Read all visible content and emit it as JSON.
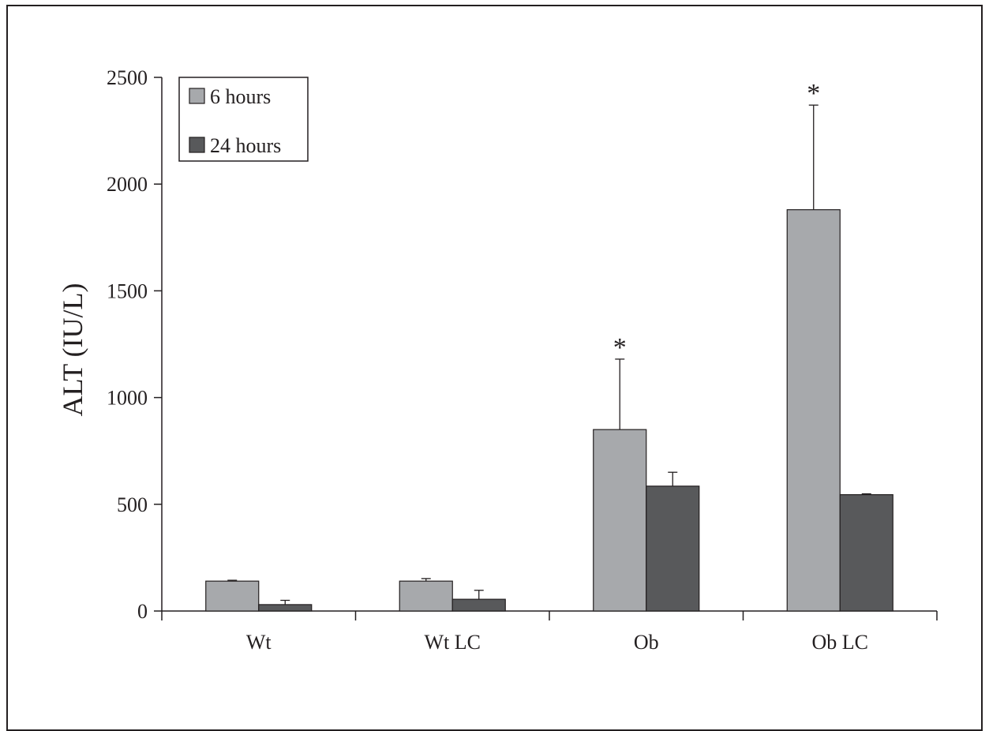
{
  "chart_data": {
    "type": "bar",
    "title": "",
    "xlabel": "",
    "ylabel": "ALT (IU/L)",
    "ylim": [
      0,
      2500
    ],
    "yticks": [
      0,
      500,
      1000,
      1500,
      2000,
      2500
    ],
    "grid": false,
    "legend_position": "top-left",
    "categories": [
      "Wt",
      "Wt LC",
      "Ob",
      "Ob LC"
    ],
    "series": [
      {
        "name": "6 hours",
        "color": "#a7a9ac",
        "values": [
          140,
          140,
          850,
          1880
        ],
        "errors": [
          4,
          12,
          330,
          490
        ],
        "annotations": [
          "",
          "",
          "*",
          "*"
        ]
      },
      {
        "name": "24 hours",
        "color": "#58595b",
        "values": [
          30,
          55,
          585,
          545
        ],
        "errors": [
          20,
          42,
          65,
          4
        ],
        "annotations": [
          "",
          "",
          "",
          ""
        ]
      }
    ]
  }
}
